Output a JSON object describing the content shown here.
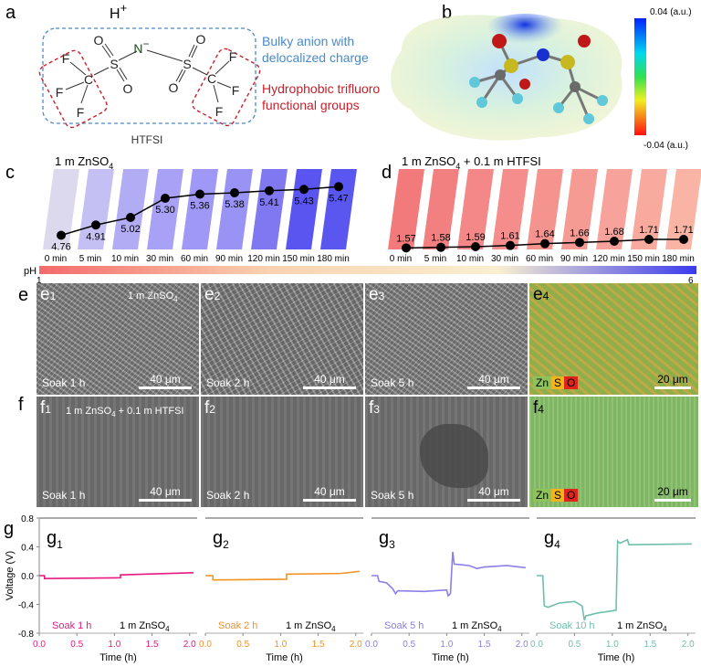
{
  "panel_a": {
    "label": "a",
    "proton": "H",
    "proton_charge": "+",
    "atoms": {
      "N": "N",
      "N_charge": "−",
      "S": "S",
      "O": "O",
      "C": "C",
      "F": "F"
    },
    "name": "HTFSI",
    "note_blue": [
      "Bulky anion with",
      "delocalized charge"
    ],
    "note_red": [
      "Hydrophobic trifluoro",
      "functional groups"
    ],
    "colors": {
      "blue": "#4a8ac8",
      "red": "#c8202a"
    }
  },
  "panel_b": {
    "label": "b",
    "colorbar_max": "0.04 (a.u.)",
    "colorbar_min": "-0.04 (a.u.)"
  },
  "chart_data": [
    {
      "type": "line",
      "panel": "c",
      "title_main": "1 m ZnSO",
      "title_sub": "4",
      "categories": [
        "0 min",
        "5 min",
        "10 min",
        "30 min",
        "60 min",
        "90 min",
        "120 min",
        "150 min",
        "180 min"
      ],
      "values": [
        4.76,
        4.91,
        5.02,
        5.3,
        5.36,
        5.38,
        5.41,
        5.43,
        5.47
      ],
      "labels": [
        "4.76",
        "4.91",
        "5.02",
        "5.30",
        "5.36",
        "5.38",
        "5.41",
        "5.43",
        "5.47"
      ],
      "bar_colors": [
        "#dcd9ef",
        "#c4c0f4",
        "#b2acf5",
        "#a8a1f5",
        "#9f98f6",
        "#9993f5",
        "#7f78f0",
        "#5a55f0",
        "#5a57f0"
      ]
    },
    {
      "type": "line",
      "panel": "d",
      "title_main": "1 m ZnSO",
      "title_sub": "4",
      "title_rest": " + 0.1 m HTFSI",
      "categories": [
        "0 min",
        "5 min",
        "10 min",
        "30 min",
        "60 min",
        "90 min",
        "120 min",
        "150 min",
        "180 min"
      ],
      "values": [
        1.57,
        1.58,
        1.59,
        1.61,
        1.64,
        1.66,
        1.68,
        1.71,
        1.71
      ],
      "labels": [
        "1.57",
        "1.58",
        "1.59",
        "1.61",
        "1.64",
        "1.66",
        "1.68",
        "1.71",
        "1.71"
      ],
      "bar_colors": [
        "#f27a7a",
        "#f38080",
        "#f48787",
        "#f48d8b",
        "#f5938f",
        "#f69a94",
        "#f7a29a",
        "#f8aa9f",
        "#f9b4a6"
      ]
    },
    {
      "type": "line",
      "panel": "g",
      "ylabel": "Voltage (V)",
      "xlabel": "Time (h)",
      "ylim": [
        -0.8,
        0.8
      ],
      "yticks": [
        "0.8",
        "0.4",
        "0.0",
        "-0.4",
        "-0.8"
      ],
      "xlim": [
        0,
        2.1
      ],
      "xticks": [
        "0.0",
        "0.5",
        "1.0",
        "1.5",
        "2.0"
      ],
      "series": [
        {
          "label": "g",
          "sub": "1",
          "soak": "Soak 1 h",
          "color": "#e8197f",
          "points": [
            [
              0,
              0
            ],
            [
              0.07,
              0
            ],
            [
              0.07,
              -0.04
            ],
            [
              1.08,
              -0.03
            ],
            [
              1.08,
              0.01
            ],
            [
              2.05,
              0.04
            ]
          ]
        },
        {
          "label": "g",
          "sub": "2",
          "soak": "Soak 2 h",
          "color": "#f39322",
          "points": [
            [
              0,
              0
            ],
            [
              0.1,
              0
            ],
            [
              0.1,
              -0.06
            ],
            [
              1.08,
              -0.05
            ],
            [
              1.08,
              0.02
            ],
            [
              1.8,
              0.03
            ],
            [
              2.05,
              0.06
            ]
          ]
        },
        {
          "label": "g",
          "sub": "3",
          "soak": "Soak 5 h",
          "color": "#8c7fe8",
          "points": [
            [
              0,
              0
            ],
            [
              0.08,
              0
            ],
            [
              0.1,
              -0.08
            ],
            [
              0.2,
              -0.1
            ],
            [
              0.28,
              -0.18
            ],
            [
              0.32,
              -0.25
            ],
            [
              0.35,
              -0.21
            ],
            [
              0.7,
              -0.22
            ],
            [
              1.0,
              -0.2
            ],
            [
              1.02,
              -0.28
            ],
            [
              1.05,
              -0.25
            ],
            [
              1.08,
              0.33
            ],
            [
              1.1,
              0.16
            ],
            [
              1.3,
              0.14
            ],
            [
              1.4,
              0.1
            ],
            [
              1.5,
              0.12
            ],
            [
              1.8,
              0.14
            ],
            [
              2.05,
              0.11
            ]
          ]
        },
        {
          "label": "g",
          "sub": "4",
          "soak": "Soak 10 h",
          "color": "#6fbfae",
          "points": [
            [
              0,
              0
            ],
            [
              0.08,
              0
            ],
            [
              0.1,
              -0.42
            ],
            [
              0.15,
              -0.44
            ],
            [
              0.3,
              -0.38
            ],
            [
              0.5,
              -0.36
            ],
            [
              0.6,
              -0.42
            ],
            [
              0.63,
              -0.62
            ],
            [
              0.65,
              -0.56
            ],
            [
              0.8,
              -0.52
            ],
            [
              1.0,
              -0.49
            ],
            [
              1.05,
              -0.48
            ],
            [
              1.07,
              0.48
            ],
            [
              1.1,
              0.45
            ],
            [
              1.2,
              0.5
            ],
            [
              1.22,
              0.43
            ],
            [
              2.05,
              0.44
            ]
          ]
        }
      ],
      "electrolyte_main": "1 m ZnSO",
      "electrolyte_sub": "4"
    }
  ],
  "labels": {
    "c": "c",
    "d": "d",
    "e": "e",
    "f": "f",
    "g": "g"
  },
  "ph_bar": {
    "label": "pH",
    "min": "1",
    "max": "6"
  },
  "panel_e": {
    "images": [
      {
        "label": "e",
        "sub": "1",
        "soak": "Soak 1 h",
        "scale": "40 μm"
      },
      {
        "label": "e",
        "sub": "2",
        "soak": "Soak 2 h",
        "scale": "40 μm"
      },
      {
        "label": "e",
        "sub": "3",
        "soak": "Soak 5 h",
        "scale": "40 μm"
      },
      {
        "label": "e",
        "sub": "4",
        "scale": "20 μm"
      }
    ],
    "inner_main": "1 m ZnSO",
    "inner_sub": "4"
  },
  "panel_f": {
    "images": [
      {
        "label": "f",
        "sub": "1",
        "soak": "Soak 1 h",
        "scale": "40 μm"
      },
      {
        "label": "f",
        "sub": "2",
        "soak": "Soak 2 h",
        "scale": "40 μm"
      },
      {
        "label": "f",
        "sub": "3",
        "soak": "Soak 5 h",
        "scale": "40 μm"
      },
      {
        "label": "f",
        "sub": "4",
        "scale": "20 μm"
      }
    ],
    "inner_main": "1 m ZnSO",
    "inner_sub": "4",
    "inner_rest": " + 0.1 m HTFSI"
  },
  "eds_legend": [
    {
      "el": "Zn",
      "color": "#8fc25a"
    },
    {
      "el": "S",
      "color": "#f2b41c"
    },
    {
      "el": "O",
      "color": "#e0241c"
    }
  ]
}
